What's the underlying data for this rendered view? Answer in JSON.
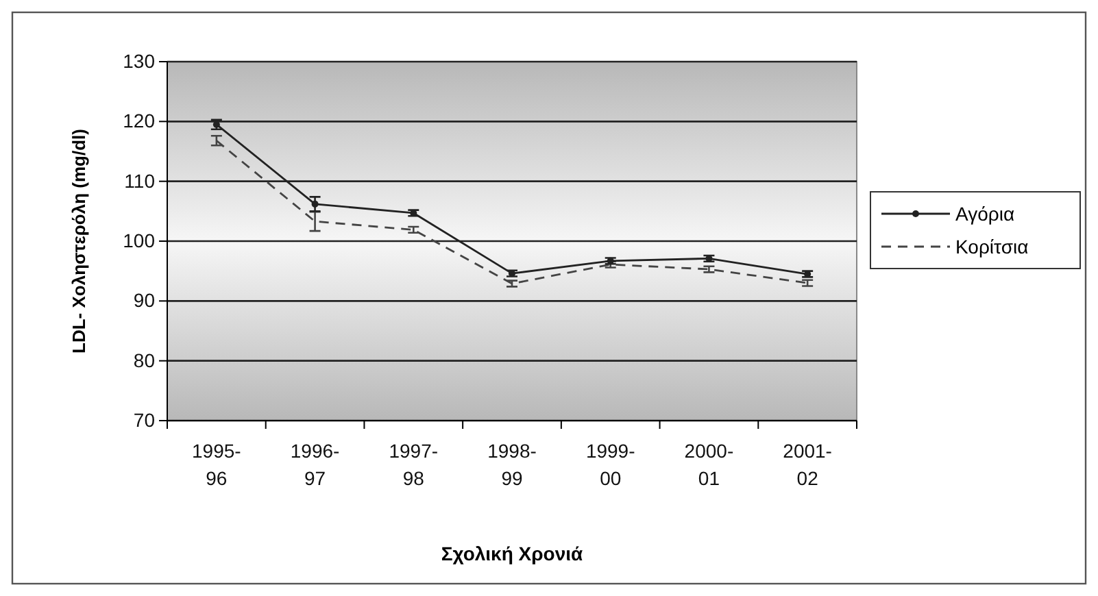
{
  "chart_data": {
    "type": "line",
    "xlabel": "Σχολική Χρονιά",
    "ylabel": "LDL- Χοληστερόλη (mg/dl)",
    "categories": [
      "1995-\n96",
      "1996-\n97",
      "1997-\n98",
      "1998-\n99",
      "1999-\n00",
      "2000-\n01",
      "2001-\n02"
    ],
    "series": [
      {
        "name": "Αγόρια",
        "color": "#222222",
        "line_style": "solid",
        "marker": "circle",
        "values": [
          119.5,
          106.2,
          104.7,
          94.6,
          96.7,
          97.1,
          94.5
        ],
        "errors": [
          0.8,
          1.2,
          0.5,
          0.5,
          0.5,
          0.5,
          0.5
        ]
      },
      {
        "name": "Κορίτσια",
        "color": "#444444",
        "line_style": "dashed",
        "marker": "none",
        "values": [
          116.8,
          103.3,
          101.9,
          92.9,
          96.1,
          95.3,
          93
        ],
        "errors": [
          0.8,
          1.6,
          0.5,
          0.5,
          0.5,
          0.5,
          0.5
        ]
      }
    ],
    "ylim": [
      70,
      130
    ],
    "yticks": [
      70,
      80,
      90,
      100,
      110,
      120,
      130
    ],
    "grid": "y",
    "legend": "right"
  }
}
